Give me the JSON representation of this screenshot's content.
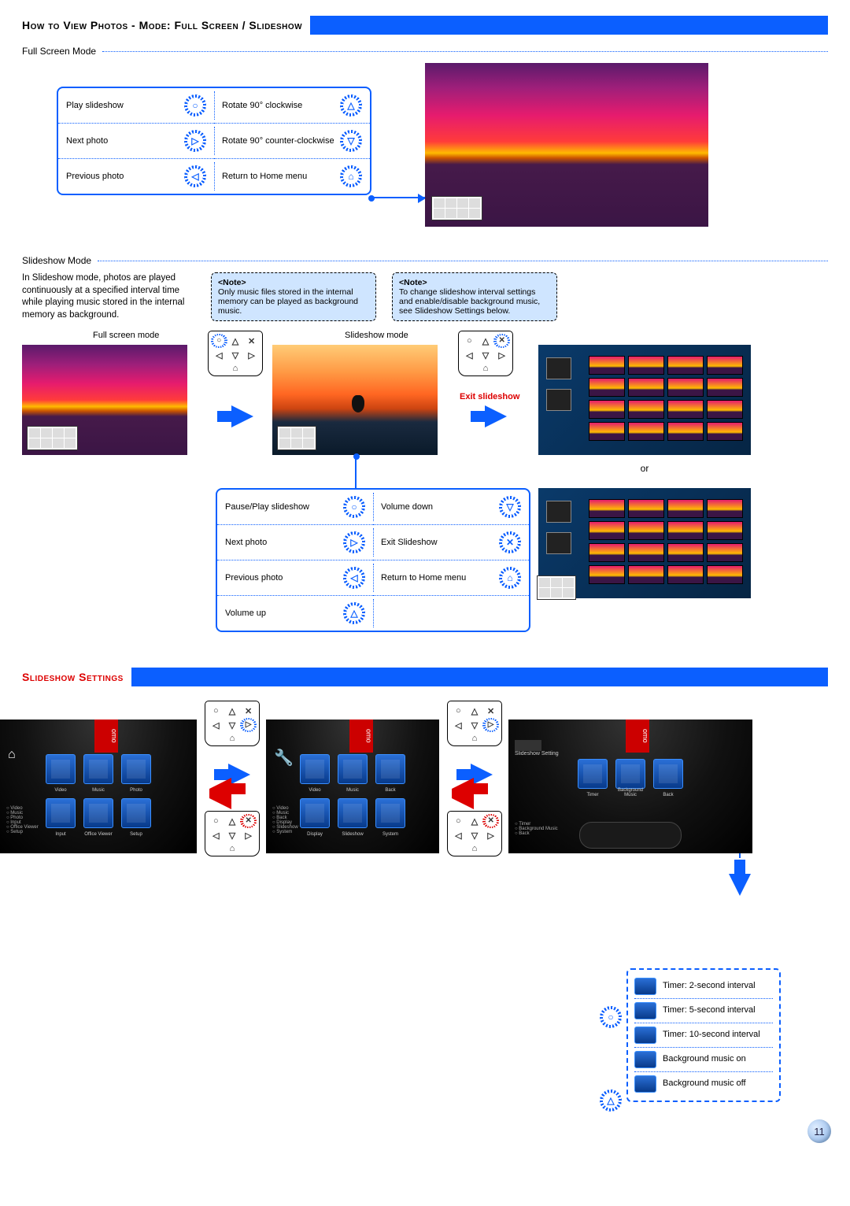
{
  "page_number": "11",
  "header1": "How to View Photos - Mode: Full Screen / Slideshow",
  "header2": "Slideshow Settings",
  "sub_fullscreen": "Full Screen Mode",
  "sub_slideshow": "Slideshow Mode",
  "slideshow_intro": "In Slideshow mode, photos are played continuously at a specified interval time while playing music stored in the internal memory as background.",
  "note1_title": "<Note>",
  "note1_body": "Only music files stored in the internal memory can be played as background music.",
  "note2_title": "<Note>",
  "note2_body": "To change slideshow interval settings and enable/disable background music, see Slideshow Settings below.",
  "label_fullscreen_mode": "Full screen mode",
  "label_slideshow_mode": "Slideshow mode",
  "label_exit_slideshow": "Exit slideshow",
  "label_or": "or",
  "legend_fullscreen": {
    "rows": [
      [
        {
          "label": "Play slideshow",
          "sym": "○"
        },
        {
          "label": "Rotate 90° clockwise",
          "sym": "△"
        }
      ],
      [
        {
          "label": "Next photo",
          "sym": "▷"
        },
        {
          "label": "Rotate 90° counter-clockwise",
          "sym": "▽"
        }
      ],
      [
        {
          "label": "Previous photo",
          "sym": "◁"
        },
        {
          "label": "Return to Home menu",
          "sym": "⌂"
        }
      ]
    ]
  },
  "legend_slideshow": {
    "rows": [
      [
        {
          "label": "Pause/Play slideshow",
          "sym": "○"
        },
        {
          "label": "Volume down",
          "sym": "▽"
        }
      ],
      [
        {
          "label": "Next photo",
          "sym": "▷"
        },
        {
          "label": "Exit Slideshow",
          "sym": "✕"
        }
      ],
      [
        {
          "label": "Previous photo",
          "sym": "◁"
        },
        {
          "label": "Return to Home menu",
          "sym": "⌂"
        }
      ],
      [
        {
          "label": "Volume up",
          "sym": "△"
        },
        null
      ]
    ]
  },
  "remote_syms": {
    "tl": "○",
    "tc": "△",
    "tr": "✕",
    "ml": "◁",
    "mc": "▽",
    "mr": "▷",
    "home": "⌂"
  },
  "device_menus": {
    "main": {
      "row1": [
        "Video",
        "Music",
        "Photo"
      ],
      "row2": [
        "Input",
        "Office Viewer",
        "Setup"
      ],
      "side": [
        "Video",
        "Music",
        "Photo",
        "Input",
        "Office Viewer",
        "Setup"
      ]
    },
    "setup": {
      "row1": [
        "Video",
        "Music",
        "Back"
      ],
      "row2": [
        "Display",
        "Slideshow",
        "System"
      ],
      "side": [
        "Video",
        "Music",
        "Back",
        "Display",
        "Slideshow",
        "System"
      ]
    },
    "slide": {
      "row1": [
        "Timer",
        "Background Music",
        "Back"
      ],
      "row2": [],
      "side": [
        "Timer",
        "Background Music",
        "Back"
      ]
    }
  },
  "timer_options": [
    {
      "label": "Timer: 2-second interval",
      "hl": null
    },
    {
      "label": "Timer: 5-second interval",
      "hl": "○"
    },
    {
      "label": "Timer: 10-second interval",
      "hl": null
    },
    {
      "label": "Background music on",
      "hl": null
    },
    {
      "label": "Background music off",
      "hl": "△"
    }
  ],
  "colors": {
    "accent": "#0b5fff",
    "danger": "#d00"
  }
}
